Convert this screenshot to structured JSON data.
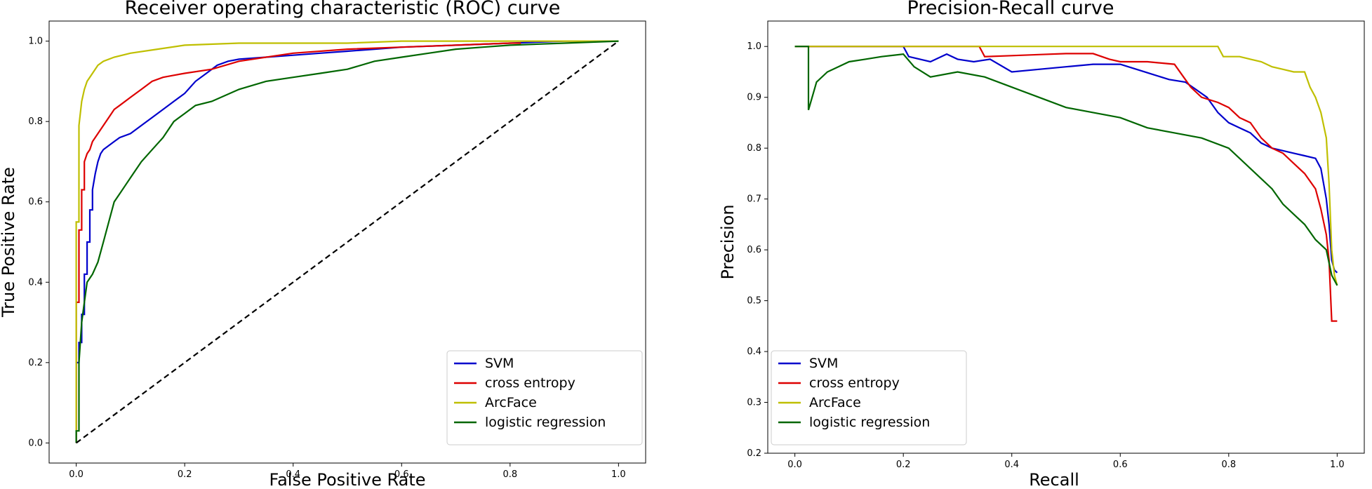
{
  "chart_data": [
    {
      "type": "line",
      "title": "Receiver operating characteristic (ROC) curve",
      "xlabel": "False Positive Rate",
      "ylabel": "True Positive Rate",
      "xlim": [
        -0.05,
        1.05
      ],
      "ylim": [
        -0.05,
        1.05
      ],
      "xticks": [
        0.0,
        0.2,
        0.4,
        0.6,
        0.8,
        1.0
      ],
      "yticks": [
        0.0,
        0.2,
        0.4,
        0.6,
        0.8,
        1.0
      ],
      "legend_position": "lower-right",
      "series": [
        {
          "name": "SVM",
          "color": "#0000cc",
          "x": [
            0.0,
            0.0,
            0.005,
            0.005,
            0.01,
            0.01,
            0.015,
            0.015,
            0.02,
            0.02,
            0.025,
            0.025,
            0.03,
            0.03,
            0.035,
            0.04,
            0.045,
            0.05,
            0.06,
            0.07,
            0.08,
            0.1,
            0.12,
            0.14,
            0.16,
            0.18,
            0.2,
            0.22,
            0.24,
            0.26,
            0.28,
            0.3,
            0.35,
            0.4,
            0.45,
            0.5,
            0.55,
            0.6,
            0.7,
            0.8,
            0.9,
            1.0
          ],
          "y": [
            0.0,
            0.2,
            0.2,
            0.25,
            0.25,
            0.32,
            0.32,
            0.42,
            0.42,
            0.5,
            0.5,
            0.58,
            0.58,
            0.63,
            0.67,
            0.7,
            0.72,
            0.73,
            0.74,
            0.75,
            0.76,
            0.77,
            0.79,
            0.81,
            0.83,
            0.85,
            0.87,
            0.9,
            0.92,
            0.94,
            0.95,
            0.955,
            0.96,
            0.965,
            0.97,
            0.975,
            0.98,
            0.985,
            0.99,
            0.995,
            1.0,
            1.0
          ]
        },
        {
          "name": "cross entropy",
          "color": "#dd0000",
          "x": [
            0.0,
            0.0,
            0.005,
            0.005,
            0.01,
            0.01,
            0.015,
            0.015,
            0.02,
            0.025,
            0.03,
            0.04,
            0.05,
            0.06,
            0.07,
            0.08,
            0.1,
            0.12,
            0.14,
            0.16,
            0.18,
            0.2,
            0.25,
            0.3,
            0.35,
            0.4,
            0.5,
            0.6,
            0.7,
            0.8,
            0.82
          ],
          "y": [
            0.0,
            0.35,
            0.35,
            0.53,
            0.53,
            0.63,
            0.63,
            0.7,
            0.72,
            0.73,
            0.75,
            0.77,
            0.79,
            0.81,
            0.83,
            0.84,
            0.86,
            0.88,
            0.9,
            0.91,
            0.915,
            0.92,
            0.93,
            0.95,
            0.96,
            0.97,
            0.98,
            0.985,
            0.99,
            0.995,
            0.995
          ]
        },
        {
          "name": "ArcFace",
          "color": "#bfbf00",
          "x": [
            0.0,
            0.0,
            0.005,
            0.005,
            0.01,
            0.015,
            0.02,
            0.03,
            0.04,
            0.05,
            0.07,
            0.1,
            0.15,
            0.2,
            0.3,
            0.5,
            0.6,
            0.7,
            0.8,
            0.9,
            1.0
          ],
          "y": [
            0.0,
            0.55,
            0.55,
            0.79,
            0.85,
            0.88,
            0.9,
            0.92,
            0.94,
            0.95,
            0.96,
            0.97,
            0.98,
            0.99,
            0.995,
            0.995,
            1.0,
            1.0,
            1.0,
            1.0,
            1.0
          ],
          "note": "ArcFace curve is close to the top-left corner"
        },
        {
          "name": "logistic regression",
          "color": "#006600",
          "x": [
            0.0,
            0.0,
            0.005,
            0.005,
            0.01,
            0.015,
            0.02,
            0.03,
            0.04,
            0.05,
            0.06,
            0.07,
            0.08,
            0.09,
            0.1,
            0.12,
            0.14,
            0.16,
            0.18,
            0.2,
            0.22,
            0.25,
            0.3,
            0.35,
            0.4,
            0.45,
            0.5,
            0.55,
            0.6,
            0.65,
            0.7,
            0.75,
            0.8,
            0.9,
            1.0
          ],
          "y": [
            0.0,
            0.03,
            0.03,
            0.2,
            0.3,
            0.35,
            0.4,
            0.42,
            0.45,
            0.5,
            0.55,
            0.6,
            0.62,
            0.64,
            0.66,
            0.7,
            0.73,
            0.76,
            0.8,
            0.82,
            0.84,
            0.85,
            0.88,
            0.9,
            0.91,
            0.92,
            0.93,
            0.95,
            0.96,
            0.97,
            0.98,
            0.985,
            0.99,
            0.995,
            1.0
          ]
        },
        {
          "name": "",
          "color": "#000000",
          "dashed": true,
          "x": [
            0.0,
            1.0
          ],
          "y": [
            0.0,
            1.0
          ]
        }
      ]
    },
    {
      "type": "line",
      "title": "Precision-Recall curve",
      "xlabel": "Recall",
      "ylabel": "Precision",
      "xlim": [
        -0.05,
        1.05
      ],
      "ylim": [
        0.2,
        1.05
      ],
      "xticks": [
        0.0,
        0.2,
        0.4,
        0.6,
        0.8,
        1.0
      ],
      "yticks": [
        0.2,
        0.3,
        0.4,
        0.5,
        0.6,
        0.7,
        0.8,
        0.9,
        1.0
      ],
      "legend_position": "lower-left",
      "series": [
        {
          "name": "SVM",
          "color": "#0000cc",
          "x": [
            0.0,
            0.2,
            0.21,
            0.25,
            0.28,
            0.3,
            0.33,
            0.36,
            0.4,
            0.45,
            0.5,
            0.55,
            0.6,
            0.63,
            0.66,
            0.69,
            0.72,
            0.74,
            0.76,
            0.78,
            0.8,
            0.82,
            0.84,
            0.86,
            0.88,
            0.9,
            0.92,
            0.94,
            0.96,
            0.97,
            0.98,
            0.985,
            0.99,
            0.995,
            1.0
          ],
          "y": [
            1.0,
            1.0,
            0.98,
            0.97,
            0.985,
            0.975,
            0.97,
            0.975,
            0.95,
            0.955,
            0.96,
            0.965,
            0.965,
            0.955,
            0.945,
            0.935,
            0.93,
            0.915,
            0.9,
            0.87,
            0.85,
            0.84,
            0.83,
            0.81,
            0.8,
            0.795,
            0.79,
            0.785,
            0.78,
            0.76,
            0.7,
            0.65,
            0.58,
            0.56,
            0.555
          ]
        },
        {
          "name": "cross entropy",
          "color": "#dd0000",
          "x": [
            0.0,
            0.34,
            0.35,
            0.4,
            0.45,
            0.5,
            0.55,
            0.58,
            0.6,
            0.65,
            0.7,
            0.72,
            0.73,
            0.75,
            0.78,
            0.8,
            0.82,
            0.84,
            0.86,
            0.88,
            0.9,
            0.92,
            0.94,
            0.96,
            0.97,
            0.98,
            0.985,
            0.99,
            0.995,
            1.0
          ],
          "y": [
            1.0,
            1.0,
            0.98,
            0.982,
            0.984,
            0.986,
            0.986,
            0.975,
            0.97,
            0.97,
            0.965,
            0.935,
            0.92,
            0.9,
            0.89,
            0.88,
            0.86,
            0.85,
            0.82,
            0.8,
            0.79,
            0.77,
            0.75,
            0.72,
            0.68,
            0.63,
            0.58,
            0.46,
            0.46,
            0.46
          ]
        },
        {
          "name": "ArcFace",
          "color": "#bfbf00",
          "x": [
            0.0,
            0.2,
            0.4,
            0.6,
            0.78,
            0.79,
            0.82,
            0.84,
            0.86,
            0.88,
            0.9,
            0.92,
            0.94,
            0.95,
            0.96,
            0.97,
            0.98,
            0.985,
            0.99,
            0.995,
            1.0
          ],
          "y": [
            1.0,
            1.0,
            1.0,
            1.0,
            1.0,
            0.98,
            0.98,
            0.975,
            0.97,
            0.96,
            0.955,
            0.95,
            0.95,
            0.92,
            0.9,
            0.87,
            0.82,
            0.73,
            0.6,
            0.55,
            0.53
          ]
        },
        {
          "name": "logistic regression",
          "color": "#006600",
          "x": [
            0.0,
            0.025,
            0.025,
            0.04,
            0.06,
            0.08,
            0.1,
            0.13,
            0.16,
            0.2,
            0.22,
            0.25,
            0.3,
            0.35,
            0.4,
            0.45,
            0.5,
            0.55,
            0.6,
            0.65,
            0.7,
            0.75,
            0.8,
            0.84,
            0.88,
            0.9,
            0.92,
            0.94,
            0.96,
            0.98,
            0.99,
            1.0
          ],
          "y": [
            1.0,
            1.0,
            0.875,
            0.93,
            0.95,
            0.96,
            0.97,
            0.975,
            0.98,
            0.985,
            0.96,
            0.94,
            0.95,
            0.94,
            0.92,
            0.9,
            0.88,
            0.87,
            0.86,
            0.84,
            0.83,
            0.82,
            0.8,
            0.76,
            0.72,
            0.69,
            0.67,
            0.65,
            0.62,
            0.6,
            0.55,
            0.53
          ]
        }
      ]
    }
  ]
}
